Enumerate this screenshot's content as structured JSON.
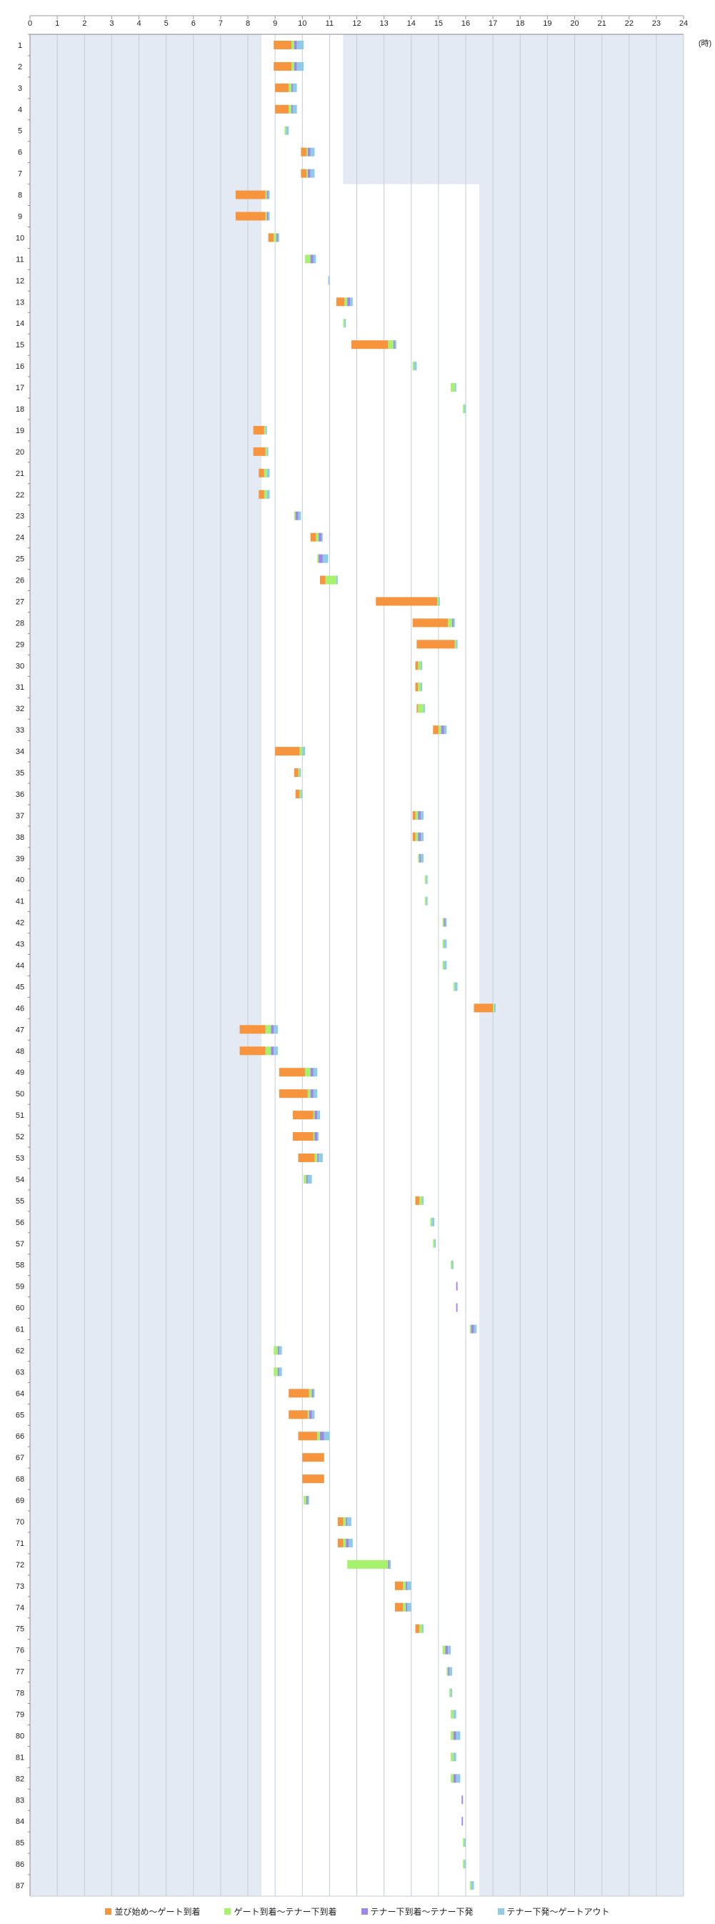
{
  "chart_data": {
    "type": "bar",
    "orientation": "horizontal",
    "stacked": true,
    "xlim": [
      0,
      24
    ],
    "x_ticks": [
      "0",
      "1",
      "2",
      "3",
      "4",
      "5",
      "6",
      "7",
      "8",
      "9",
      "10",
      "11",
      "12",
      "13",
      "14",
      "15",
      "16",
      "17",
      "18",
      "19",
      "20",
      "21",
      "22",
      "23",
      "24"
    ],
    "x_unit_label": "(時)",
    "grid": true,
    "legend_position": "bottom",
    "categories": [
      "1",
      "2",
      "3",
      "4",
      "5",
      "6",
      "7",
      "8",
      "9",
      "10",
      "11",
      "12",
      "13",
      "14",
      "15",
      "16",
      "17",
      "18",
      "19",
      "20",
      "21",
      "22",
      "23",
      "24",
      "25",
      "26",
      "27",
      "28",
      "29",
      "30",
      "31",
      "32",
      "33",
      "34",
      "35",
      "36",
      "37",
      "38",
      "39",
      "40",
      "41",
      "42",
      "43",
      "44",
      "45",
      "46",
      "47",
      "48",
      "49",
      "50",
      "51",
      "52",
      "53",
      "54",
      "55",
      "56",
      "57",
      "58",
      "59",
      "60",
      "61",
      "62",
      "63",
      "64",
      "65",
      "66",
      "67",
      "68",
      "69",
      "70",
      "71",
      "72",
      "73",
      "74",
      "75",
      "76",
      "77",
      "78",
      "79",
      "80",
      "81",
      "82",
      "83",
      "84",
      "85",
      "86",
      "87"
    ],
    "colors": [
      "#f7943e",
      "#a6f26d",
      "#9f86e8",
      "#8ecbe6"
    ],
    "background": {
      "shade_color": "#e3eaf4",
      "open_color": "#ffffff"
    },
    "series": [
      {
        "name": "並び始め～ゲート到着",
        "color": "#f7943e"
      },
      {
        "name": "ゲート到着～テナー下到着",
        "color": "#a6f26d"
      },
      {
        "name": "テナー下到着～テナー下発",
        "color": "#9f86e8"
      },
      {
        "name": "テナー下発～ゲートアウト",
        "color": "#8ecbe6"
      }
    ],
    "rows": [
      {
        "start": 8.95,
        "d": [
          0.65,
          0.1,
          0.1,
          0.25
        ]
      },
      {
        "start": 8.95,
        "d": [
          0.65,
          0.1,
          0.1,
          0.25
        ]
      },
      {
        "start": 9.0,
        "d": [
          0.5,
          0.1,
          0.05,
          0.15
        ]
      },
      {
        "start": 9.0,
        "d": [
          0.5,
          0.1,
          0.05,
          0.15
        ]
      },
      {
        "start": 9.35,
        "d": [
          0.0,
          0.05,
          0.0,
          0.1
        ]
      },
      {
        "start": 9.95,
        "d": [
          0.2,
          0.05,
          0.1,
          0.15
        ]
      },
      {
        "start": 9.95,
        "d": [
          0.2,
          0.05,
          0.1,
          0.15
        ]
      },
      {
        "start": 7.55,
        "d": [
          1.1,
          0.05,
          0.05,
          0.05
        ]
      },
      {
        "start": 7.55,
        "d": [
          1.1,
          0.05,
          0.05,
          0.05
        ]
      },
      {
        "start": 8.75,
        "d": [
          0.2,
          0.1,
          0.05,
          0.05
        ]
      },
      {
        "start": 10.1,
        "d": [
          0.0,
          0.2,
          0.1,
          0.1
        ]
      },
      {
        "start": 10.95,
        "d": [
          0.0,
          0.0,
          0.0,
          0.05
        ]
      },
      {
        "start": 11.25,
        "d": [
          0.3,
          0.1,
          0.1,
          0.1
        ]
      },
      {
        "start": 11.5,
        "d": [
          0.0,
          0.05,
          0.0,
          0.05
        ]
      },
      {
        "start": 11.8,
        "d": [
          1.35,
          0.2,
          0.05,
          0.05
        ]
      },
      {
        "start": 14.05,
        "d": [
          0.0,
          0.05,
          0.0,
          0.1
        ]
      },
      {
        "start": 15.45,
        "d": [
          0.0,
          0.15,
          0.0,
          0.05
        ]
      },
      {
        "start": 15.9,
        "d": [
          0.0,
          0.05,
          0.0,
          0.05
        ]
      },
      {
        "start": 8.2,
        "d": [
          0.4,
          0.05,
          0.0,
          0.05
        ]
      },
      {
        "start": 8.2,
        "d": [
          0.45,
          0.05,
          0.0,
          0.05
        ]
      },
      {
        "start": 8.4,
        "d": [
          0.2,
          0.1,
          0.0,
          0.1
        ]
      },
      {
        "start": 8.4,
        "d": [
          0.2,
          0.1,
          0.0,
          0.1
        ]
      },
      {
        "start": 9.7,
        "d": [
          0.0,
          0.05,
          0.1,
          0.1
        ]
      },
      {
        "start": 10.3,
        "d": [
          0.2,
          0.1,
          0.1,
          0.05
        ]
      },
      {
        "start": 10.55,
        "d": [
          0.0,
          0.05,
          0.15,
          0.2
        ]
      },
      {
        "start": 10.65,
        "d": [
          0.2,
          0.4,
          0.0,
          0.05
        ]
      },
      {
        "start": 12.7,
        "d": [
          2.25,
          0.05,
          0.0,
          0.05
        ]
      },
      {
        "start": 14.05,
        "d": [
          1.3,
          0.15,
          0.05,
          0.05
        ]
      },
      {
        "start": 14.2,
        "d": [
          1.4,
          0.05,
          0.0,
          0.05
        ]
      },
      {
        "start": 14.15,
        "d": [
          0.1,
          0.1,
          0.0,
          0.05
        ]
      },
      {
        "start": 14.15,
        "d": [
          0.1,
          0.1,
          0.0,
          0.05
        ]
      },
      {
        "start": 14.2,
        "d": [
          0.05,
          0.2,
          0.0,
          0.05
        ]
      },
      {
        "start": 14.8,
        "d": [
          0.2,
          0.1,
          0.1,
          0.1
        ]
      },
      {
        "start": 9.0,
        "d": [
          0.9,
          0.1,
          0.0,
          0.1
        ]
      },
      {
        "start": 9.7,
        "d": [
          0.15,
          0.05,
          0.0,
          0.05
        ]
      },
      {
        "start": 9.75,
        "d": [
          0.15,
          0.05,
          0.0,
          0.05
        ]
      },
      {
        "start": 14.05,
        "d": [
          0.1,
          0.1,
          0.1,
          0.1
        ]
      },
      {
        "start": 14.05,
        "d": [
          0.1,
          0.1,
          0.1,
          0.1
        ]
      },
      {
        "start": 14.25,
        "d": [
          0.0,
          0.05,
          0.05,
          0.1
        ]
      },
      {
        "start": 14.5,
        "d": [
          0.0,
          0.05,
          0.0,
          0.05
        ]
      },
      {
        "start": 14.5,
        "d": [
          0.0,
          0.05,
          0.0,
          0.05
        ]
      },
      {
        "start": 15.15,
        "d": [
          0.0,
          0.05,
          0.05,
          0.05
        ]
      },
      {
        "start": 15.15,
        "d": [
          0.0,
          0.05,
          0.0,
          0.1
        ]
      },
      {
        "start": 15.15,
        "d": [
          0.0,
          0.05,
          0.0,
          0.1
        ]
      },
      {
        "start": 15.55,
        "d": [
          0.0,
          0.05,
          0.0,
          0.1
        ]
      },
      {
        "start": 16.3,
        "d": [
          0.7,
          0.05,
          0.0,
          0.05
        ]
      },
      {
        "start": 7.7,
        "d": [
          0.95,
          0.2,
          0.1,
          0.15
        ]
      },
      {
        "start": 7.7,
        "d": [
          0.95,
          0.2,
          0.1,
          0.15
        ]
      },
      {
        "start": 9.15,
        "d": [
          0.95,
          0.2,
          0.1,
          0.15
        ]
      },
      {
        "start": 9.15,
        "d": [
          1.05,
          0.1,
          0.1,
          0.15
        ]
      },
      {
        "start": 9.65,
        "d": [
          0.75,
          0.05,
          0.1,
          0.1
        ]
      },
      {
        "start": 9.65,
        "d": [
          0.75,
          0.05,
          0.1,
          0.05
        ]
      },
      {
        "start": 9.85,
        "d": [
          0.6,
          0.1,
          0.05,
          0.15
        ]
      },
      {
        "start": 10.05,
        "d": [
          0.0,
          0.1,
          0.05,
          0.15
        ]
      },
      {
        "start": 14.15,
        "d": [
          0.15,
          0.1,
          0.0,
          0.05
        ]
      },
      {
        "start": 14.7,
        "d": [
          0.0,
          0.05,
          0.0,
          0.1
        ]
      },
      {
        "start": 14.8,
        "d": [
          0.0,
          0.05,
          0.0,
          0.05
        ]
      },
      {
        "start": 15.45,
        "d": [
          0.0,
          0.05,
          0.0,
          0.05
        ]
      },
      {
        "start": 15.65,
        "d": [
          0.0,
          0.0,
          0.05,
          0.0
        ]
      },
      {
        "start": 15.65,
        "d": [
          0.0,
          0.0,
          0.05,
          0.0
        ]
      },
      {
        "start": 16.15,
        "d": [
          0.0,
          0.05,
          0.1,
          0.1
        ]
      },
      {
        "start": 8.95,
        "d": [
          0.0,
          0.15,
          0.05,
          0.1
        ]
      },
      {
        "start": 8.95,
        "d": [
          0.0,
          0.15,
          0.05,
          0.1
        ]
      },
      {
        "start": 9.5,
        "d": [
          0.75,
          0.1,
          0.05,
          0.05
        ]
      },
      {
        "start": 9.5,
        "d": [
          0.7,
          0.05,
          0.1,
          0.1
        ]
      },
      {
        "start": 9.85,
        "d": [
          0.7,
          0.1,
          0.15,
          0.2
        ]
      },
      {
        "start": 10.0,
        "d": [
          0.8,
          0.0,
          0.0,
          0.0
        ]
      },
      {
        "start": 10.0,
        "d": [
          0.8,
          0.0,
          0.0,
          0.0
        ]
      },
      {
        "start": 10.05,
        "d": [
          0.0,
          0.1,
          0.05,
          0.05
        ]
      },
      {
        "start": 11.3,
        "d": [
          0.2,
          0.1,
          0.05,
          0.15
        ]
      },
      {
        "start": 11.3,
        "d": [
          0.2,
          0.1,
          0.1,
          0.15
        ]
      },
      {
        "start": 11.65,
        "d": [
          0.0,
          1.5,
          0.05,
          0.05
        ]
      },
      {
        "start": 13.4,
        "d": [
          0.3,
          0.1,
          0.05,
          0.15
        ]
      },
      {
        "start": 13.4,
        "d": [
          0.3,
          0.1,
          0.05,
          0.15
        ]
      },
      {
        "start": 14.15,
        "d": [
          0.15,
          0.1,
          0.0,
          0.05
        ]
      },
      {
        "start": 15.15,
        "d": [
          0.0,
          0.1,
          0.1,
          0.1
        ]
      },
      {
        "start": 15.3,
        "d": [
          0.0,
          0.05,
          0.05,
          0.1
        ]
      },
      {
        "start": 15.4,
        "d": [
          0.0,
          0.05,
          0.0,
          0.05
        ]
      },
      {
        "start": 15.45,
        "d": [
          0.0,
          0.1,
          0.0,
          0.1
        ]
      },
      {
        "start": 15.45,
        "d": [
          0.0,
          0.1,
          0.1,
          0.15
        ]
      },
      {
        "start": 15.45,
        "d": [
          0.0,
          0.1,
          0.0,
          0.1
        ]
      },
      {
        "start": 15.45,
        "d": [
          0.0,
          0.1,
          0.1,
          0.15
        ]
      },
      {
        "start": 15.85,
        "d": [
          0.0,
          0.0,
          0.05,
          0.0
        ]
      },
      {
        "start": 15.85,
        "d": [
          0.0,
          0.0,
          0.05,
          0.0
        ]
      },
      {
        "start": 15.9,
        "d": [
          0.0,
          0.05,
          0.0,
          0.05
        ]
      },
      {
        "start": 15.9,
        "d": [
          0.0,
          0.05,
          0.0,
          0.05
        ]
      },
      {
        "start": 16.15,
        "d": [
          0.0,
          0.05,
          0.0,
          0.1
        ]
      }
    ],
    "open_windows": [
      {
        "from_row": 1,
        "to_row": 7,
        "x": [
          8.5,
          11.5
        ]
      },
      {
        "from_row": 8,
        "to_row": 87,
        "x": [
          8.5,
          16.5
        ]
      }
    ]
  }
}
